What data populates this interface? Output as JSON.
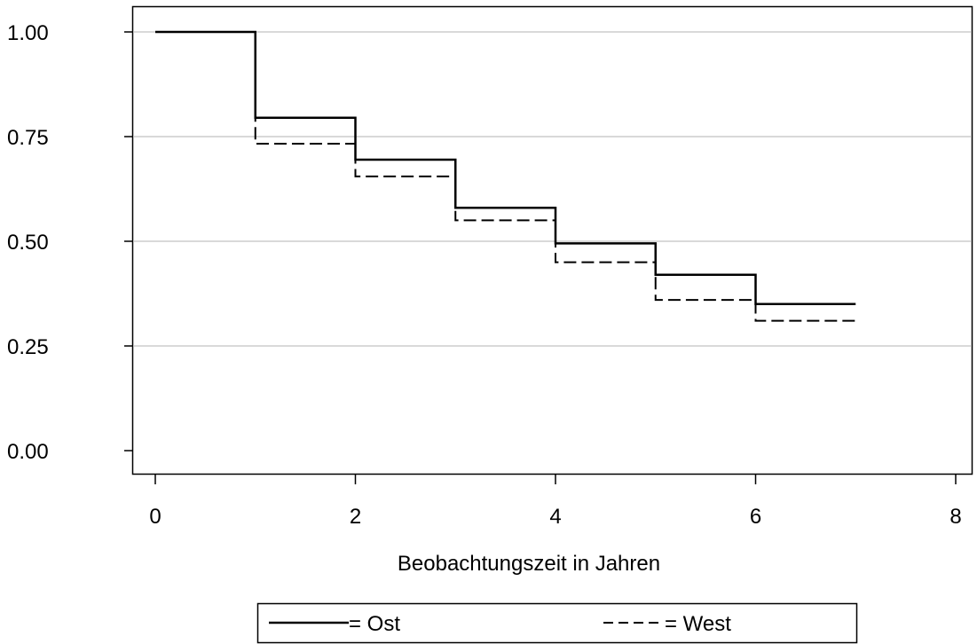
{
  "chart_data": {
    "type": "line",
    "step": true,
    "title": "",
    "xlabel": "Beobachtungszeit in Jahren",
    "ylabel": "",
    "xlim": [
      0,
      8
    ],
    "ylim": [
      0,
      1
    ],
    "xticks": [
      0,
      2,
      4,
      6,
      8
    ],
    "xtick_labels": [
      "0",
      "2",
      "4",
      "6",
      "8"
    ],
    "yticks": [
      0,
      0.25,
      0.5,
      0.75,
      1.0
    ],
    "ytick_labels": [
      "0.00",
      "0.25",
      "0.50",
      "0.75",
      "1.00"
    ],
    "grid": "horizontal",
    "legend_placement": "bottom",
    "series": [
      {
        "name": "Ost",
        "legend_text": "= Ost",
        "style": "solid",
        "color": "#000000",
        "x": [
          0,
          1,
          2,
          3,
          4,
          5,
          6,
          7
        ],
        "values": [
          1.0,
          0.795,
          0.695,
          0.58,
          0.495,
          0.42,
          0.35,
          0.35
        ]
      },
      {
        "name": "West",
        "legend_text": "= West",
        "style": "dashed",
        "color": "#000000",
        "x": [
          0,
          1,
          2,
          3,
          4,
          5,
          6,
          7
        ],
        "values": [
          1.0,
          0.733,
          0.655,
          0.55,
          0.45,
          0.36,
          0.31,
          0.31
        ]
      }
    ]
  }
}
